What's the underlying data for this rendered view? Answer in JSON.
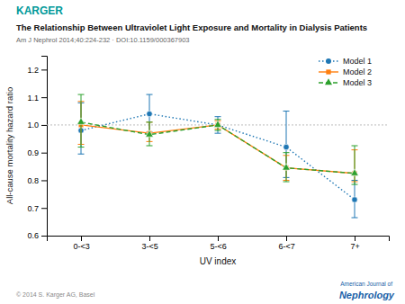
{
  "chart_data": {
    "type": "line",
    "title": "The Relationship Between Ultraviolet Light Exposure and Mortality in Dialysis Patients",
    "subtitle": "Am J Nephrol 2014;40:224-232 · DOI:10.1159/000367903",
    "x_label": "UV index",
    "y_label": "All-cause mortality hazard ratio",
    "categories": [
      "0-<3",
      "3-<5",
      "5-<6",
      "6-<7",
      "7+"
    ],
    "ylim": [
      0.6,
      1.25
    ],
    "yticks": [
      0.6,
      0.7,
      0.8,
      0.9,
      {
        "value": 1.0,
        "label": "1.0"
      },
      1.1,
      1.2
    ],
    "grid": false,
    "legend": "upper right",
    "reference_line": 1.0,
    "series": [
      {
        "name": "Model 1",
        "marker": "circle",
        "line_style": "dotted",
        "values": [
          0.98,
          1.04,
          1.0,
          0.92,
          0.73
        ],
        "error_low": [
          0.085,
          0.065,
          0.03,
          0.11,
          0.065
        ],
        "error_high": [
          0.1,
          0.07,
          0.03,
          0.13,
          0.07
        ]
      },
      {
        "name": "Model 2",
        "marker": "square",
        "line_style": "solid",
        "values": [
          1.0,
          0.97,
          1.0,
          0.845,
          0.825
        ],
        "error_low": [
          0.07,
          0.03,
          0.015,
          0.045,
          0.03
        ],
        "error_high": [
          0.085,
          0.04,
          0.015,
          0.045,
          0.085
        ]
      },
      {
        "name": "Model 3",
        "marker": "triangle",
        "line_style": "dashed",
        "values": [
          1.01,
          0.965,
          1.0,
          0.845,
          0.825
        ],
        "error_low": [
          0.09,
          0.04,
          0.02,
          0.05,
          0.04
        ],
        "error_high": [
          0.1,
          0.045,
          0.02,
          0.055,
          0.1
        ]
      }
    ],
    "annotations": [
      {
        "text": "KARGER",
        "color": "#009999"
      },
      {
        "text": "© 2014 S. Karger AG, Basel"
      },
      {
        "text": "American Journal of",
        "color": "#1a5fa8"
      },
      {
        "text": "Nephrology",
        "color": "#1a5fa8"
      }
    ]
  }
}
